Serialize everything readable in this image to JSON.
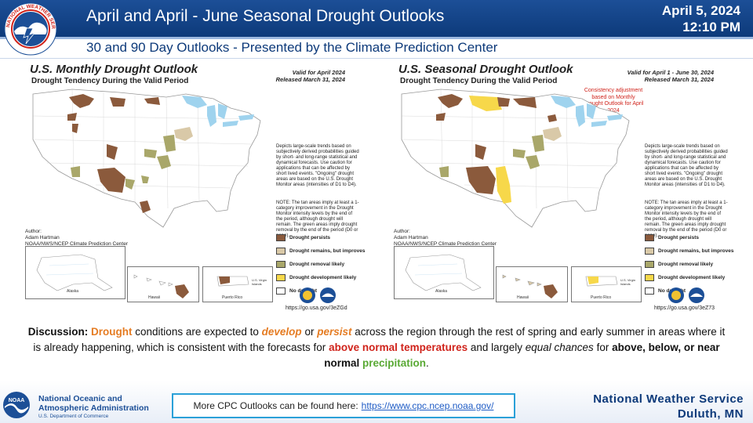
{
  "header": {
    "title": "April and April - June Seasonal Drought Outlooks",
    "subtitle": "30 and 90 Day Outlooks - Presented by the Climate Prediction Center",
    "date": "April 5, 2024",
    "time": "12:10 PM",
    "logo_text": "NATIONAL WEATHER SERVICE"
  },
  "panels": [
    {
      "title": "U.S. Monthly Drought Outlook",
      "subtitle": "Drought Tendency During the Valid Period",
      "valid": "Valid for April 2024",
      "released": "Released March 31, 2024",
      "description": "Depicts large-scale trends based on subjectively derived probabilities guided by short- and long-range statistical and dynamical forecasts. Use caution for applications that can be affected by short lived events. \"Ongoing\" drought areas are based on the U.S. Drought Monitor areas (intensities of D1 to D4).",
      "note": "NOTE: The tan areas imply at least a 1-category improvement in the Drought Monitor intensity levels by the end of the period, although drought will remain. The green areas imply drought removal by the end of the period (D0 or none).",
      "author_label": "Author:",
      "author_name": "Adam Hartman",
      "author_org": "NOAA/NWS/NCEP Climate Prediction Center",
      "url": "https://go.usa.gov/3eZGd",
      "inset_alaska": "Alaska",
      "inset_hawaii": "Hawaii",
      "inset_pr": "Puerto Rico",
      "inset_vi": "U.S. Virgin Islands"
    },
    {
      "title": "U.S. Seasonal Drought Outlook",
      "subtitle": "Drought Tendency During the Valid Period",
      "valid": "Valid for April 1 - June 30, 2024",
      "released": "Released March 31, 2024",
      "consistency": "Consistency adjustment based on Monthly Drought Outlook for April 2024",
      "description": "Depicts large-scale trends based on subjectively derived probabilities guided by short- and long-range statistical and dynamical forecasts. Use caution for applications that can be affected by short lived events. \"Ongoing\" drought areas are based on the U.S. Drought Monitor areas (intensities of D1 to D4).",
      "note": "NOTE: The tan areas imply at least a 1-category improvement in the Drought Monitor intensity levels by the end of the period, although drought will remain. The green areas imply drought removal by the end of the period (D0 or none).",
      "author_label": "Author:",
      "author_name": "Adam Hartman",
      "author_org": "NOAA/NWS/NCEP Climate Prediction Center",
      "url": "https://go.usa.gov/3eZ73",
      "inset_alaska": "Alaska",
      "inset_hawaii": "Hawaii",
      "inset_pr": "Puerto Rico",
      "inset_vi": "U.S. Virgin Islands"
    }
  ],
  "legend": [
    {
      "label": "Drought persists",
      "color": "#8b5a3c"
    },
    {
      "label": "Drought remains, but improves",
      "color": "#d9c9a8"
    },
    {
      "label": "Drought removal likely",
      "color": "#a9a76a"
    },
    {
      "label": "Drought development likely",
      "color": "#f7d84a"
    },
    {
      "label": "No drought",
      "color": "#ffffff"
    }
  ],
  "discussion": {
    "lead": "Discussion:",
    "drought": "Drought",
    "t1": "conditions are expected to",
    "develop": "develop",
    "or": "or",
    "persist": "persist",
    "t2": "across the region through the rest of spring and early summer in areas where it is already happening, which is consistent with the forecasts for",
    "above_normal_temps": "above normal temperatures",
    "t3": "and largely",
    "equal_chances": "equal chances",
    "t4": "for",
    "abn": "above, below, or near normal",
    "precipitation": "precipitation",
    "period": "."
  },
  "footer": {
    "noaa_line1": "National Oceanic and",
    "noaa_line2": "Atmospheric Administration",
    "noaa_dept": "U.S. Department of Commerce",
    "noaa_logo_text": "NOAA",
    "cpc_text": "More CPC Outlooks can be found here:",
    "cpc_link": "https://www.cpc.ncep.noaa.gov/",
    "office_line1": "National Weather Service",
    "office_line2": "Duluth, MN"
  },
  "colors": {
    "persist": "#8b5a3c",
    "improves": "#d9c9a8",
    "removal": "#a9a76a",
    "development": "#f7d84a",
    "lakes": "#9fd3ee",
    "header": "#1c4f97"
  }
}
